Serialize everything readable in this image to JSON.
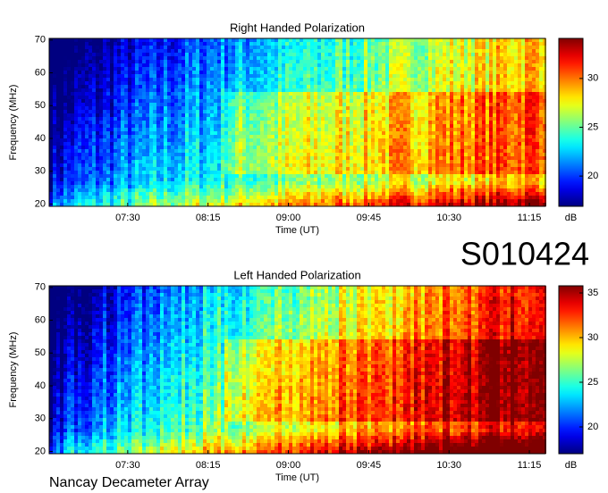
{
  "header": {
    "id": "S010424",
    "footer": "Nancay Decameter Array"
  },
  "chart_data": [
    {
      "type": "heatmap",
      "title": "Right Handed Polarization",
      "xlabel": "Time (UT)",
      "ylabel": "Frequency (MHz)",
      "xlim": [
        406,
        684
      ],
      "xticks": [
        {
          "value": 450,
          "label": "07:30"
        },
        {
          "value": 495,
          "label": "08:15"
        },
        {
          "value": 540,
          "label": "09:00"
        },
        {
          "value": 585,
          "label": "09:45"
        },
        {
          "value": 630,
          "label": "10:30"
        },
        {
          "value": 675,
          "label": "11:15"
        }
      ],
      "ylim": [
        19.3,
        70.5
      ],
      "yticks": [
        20,
        30,
        40,
        50,
        60,
        70
      ],
      "colormap": "jet",
      "clabel": "dB",
      "clim": [
        16.9,
        34.1
      ],
      "cticks": [
        20,
        25,
        30
      ]
    },
    {
      "type": "heatmap",
      "title": "Left Handed Polarization",
      "xlabel": "Time (UT)",
      "ylabel": "Frequency (MHz)",
      "xlim": [
        406,
        684
      ],
      "xticks": [
        {
          "value": 450,
          "label": "07:30"
        },
        {
          "value": 495,
          "label": "08:15"
        },
        {
          "value": 540,
          "label": "09:00"
        },
        {
          "value": 585,
          "label": "09:45"
        },
        {
          "value": 630,
          "label": "10:30"
        },
        {
          "value": 675,
          "label": "11:15"
        }
      ],
      "ylim": [
        19.3,
        70.5
      ],
      "yticks": [
        20,
        30,
        40,
        50,
        60,
        70
      ],
      "colormap": "jet",
      "clabel": "dB",
      "clim": [
        17.0,
        35.8
      ],
      "cticks": [
        20,
        25,
        30,
        35
      ]
    }
  ]
}
